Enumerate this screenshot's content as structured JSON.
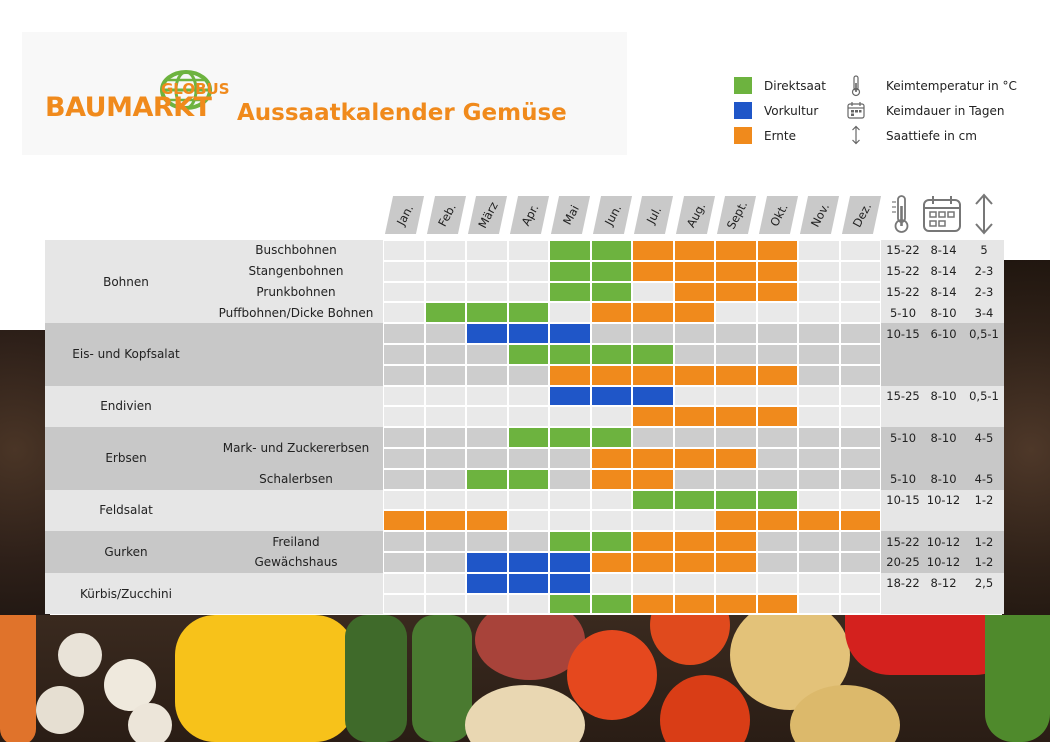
{
  "logo": {
    "main": "BAUMARKT",
    "top": "GLOBUS"
  },
  "title": "Aussaatkalender Gemüse",
  "colors": {
    "direktsaat": "#6db33f",
    "vorkultur": "#1f56c8",
    "ernte": "#f08a1c",
    "orange": "#f08a1c"
  },
  "legend": [
    {
      "key": "direktsaat",
      "label": "Direktsaat"
    },
    {
      "key": "vorkultur",
      "label": "Vorkultur"
    },
    {
      "key": "ernte",
      "label": "Ernte"
    }
  ],
  "icon_legend": [
    {
      "icon": "thermometer-icon",
      "label": "Keimtemperatur in °C"
    },
    {
      "icon": "calendar-icon",
      "label": "Keimdauer in Tagen"
    },
    {
      "icon": "depth-arrow-icon",
      "label": "Saattiefe in cm"
    }
  ],
  "chart_data": {
    "type": "table",
    "months": [
      "Jan.",
      "Feb.",
      "März",
      "Apr.",
      "Mai",
      "Jun.",
      "Jul.",
      "Aug.",
      "Sept.",
      "Okt.",
      "Nov.",
      "Dez."
    ],
    "columns_extra": [
      "Keimtemperatur in °C",
      "Keimdauer in Tagen",
      "Saattiefe in cm"
    ],
    "groups": [
      {
        "name": "Bohnen",
        "rows": [
          {
            "label": "Buschbohnen",
            "cells": [
              "",
              "",
              "",
              "",
              "D",
              "D",
              "E",
              "E",
              "E",
              "E",
              "",
              ""
            ],
            "temp": "15-22",
            "days": "8-14",
            "depth": "5"
          },
          {
            "label": "Stangenbohnen",
            "cells": [
              "",
              "",
              "",
              "",
              "D",
              "D",
              "E",
              "E",
              "E",
              "E",
              "",
              ""
            ],
            "temp": "15-22",
            "days": "8-14",
            "depth": "2-3"
          },
          {
            "label": "Prunkbohnen",
            "cells": [
              "",
              "",
              "",
              "",
              "D",
              "D",
              "",
              "E",
              "E",
              "E",
              "",
              ""
            ],
            "temp": "15-22",
            "days": "8-14",
            "depth": "2-3"
          },
          {
            "label": "Puffbohnen/Dicke Bohnen",
            "cells": [
              "",
              "D",
              "D",
              "D",
              "",
              "E",
              "E",
              "E",
              "",
              "",
              "",
              ""
            ],
            "temp": "5-10",
            "days": "8-10",
            "depth": "3-4"
          }
        ]
      },
      {
        "name": "Eis- und Kopfsalat",
        "rows": [
          {
            "label": "",
            "cells": [
              "",
              "",
              "V",
              "V",
              "V",
              "",
              "",
              "",
              "",
              "",
              "",
              ""
            ],
            "temp": "10-15",
            "days": "6-10",
            "depth": "0,5-1"
          },
          {
            "label": "",
            "cells": [
              "",
              "",
              "",
              "D",
              "D",
              "D",
              "D",
              "",
              "",
              "",
              "",
              ""
            ],
            "temp": "",
            "days": "",
            "depth": ""
          },
          {
            "label": "",
            "cells": [
              "",
              "",
              "",
              "",
              "E",
              "E",
              "E",
              "E",
              "E",
              "E",
              "",
              ""
            ],
            "temp": "",
            "days": "",
            "depth": ""
          }
        ]
      },
      {
        "name": "Endivien",
        "rows": [
          {
            "label": "",
            "cells": [
              "",
              "",
              "",
              "",
              "V",
              "V",
              "V",
              "",
              "",
              "",
              "",
              ""
            ],
            "temp": "15-25",
            "days": "8-10",
            "depth": "0,5-1"
          },
          {
            "label": "",
            "cells": [
              "",
              "",
              "",
              "",
              "",
              "",
              "E",
              "E",
              "E",
              "E",
              "",
              ""
            ],
            "temp": "",
            "days": "",
            "depth": ""
          }
        ]
      },
      {
        "name": "Erbsen",
        "rows": [
          {
            "label": "Mark- und Zuckererbsen",
            "cells": [
              "",
              "",
              "",
              "D",
              "D",
              "D",
              "",
              "",
              "",
              "",
              "",
              ""
            ],
            "temp": "5-10",
            "days": "8-10",
            "depth": "4-5"
          },
          {
            "label": "",
            "cells": [
              "",
              "",
              "",
              "",
              "",
              "E",
              "E",
              "E",
              "E",
              "",
              "",
              ""
            ],
            "temp": "",
            "days": "",
            "depth": ""
          },
          {
            "label": "Schalerbsen",
            "cells": [
              "",
              "",
              "D",
              "D",
              "",
              "E",
              "E",
              "",
              "",
              "",
              "",
              ""
            ],
            "temp": "5-10",
            "days": "8-10",
            "depth": "4-5"
          }
        ]
      },
      {
        "name": "Feldsalat",
        "rows": [
          {
            "label": "",
            "cells": [
              "",
              "",
              "",
              "",
              "",
              "",
              "D",
              "D",
              "D",
              "D",
              "",
              ""
            ],
            "temp": "10-15",
            "days": "10-12",
            "depth": "1-2"
          },
          {
            "label": "",
            "cells": [
              "E",
              "E",
              "E",
              "",
              "",
              "",
              "",
              "",
              "E",
              "E",
              "E",
              "E"
            ],
            "temp": "",
            "days": "",
            "depth": ""
          }
        ]
      },
      {
        "name": "Gurken",
        "rows": [
          {
            "label": "Freiland",
            "cells": [
              "",
              "",
              "",
              "",
              "D",
              "D",
              "E",
              "E",
              "E",
              "",
              "",
              ""
            ],
            "temp": "15-22",
            "days": "10-12",
            "depth": "1-2"
          },
          {
            "label": "Gewächshaus",
            "cells": [
              "",
              "",
              "V",
              "V",
              "V",
              "E",
              "E",
              "E",
              "E",
              "",
              "",
              ""
            ],
            "temp": "20-25",
            "days": "10-12",
            "depth": "1-2"
          }
        ]
      },
      {
        "name": "Kürbis/Zucchini",
        "rows": [
          {
            "label": "",
            "cells": [
              "",
              "",
              "V",
              "V",
              "V",
              "",
              "",
              "",
              "",
              "",
              "",
              ""
            ],
            "temp": "18-22",
            "days": "8-12",
            "depth": "2,5"
          },
          {
            "label": "",
            "cells": [
              "",
              "",
              "",
              "",
              "D",
              "D",
              "E",
              "E",
              "E",
              "E",
              "",
              ""
            ],
            "temp": "",
            "days": "",
            "depth": ""
          }
        ]
      }
    ]
  }
}
